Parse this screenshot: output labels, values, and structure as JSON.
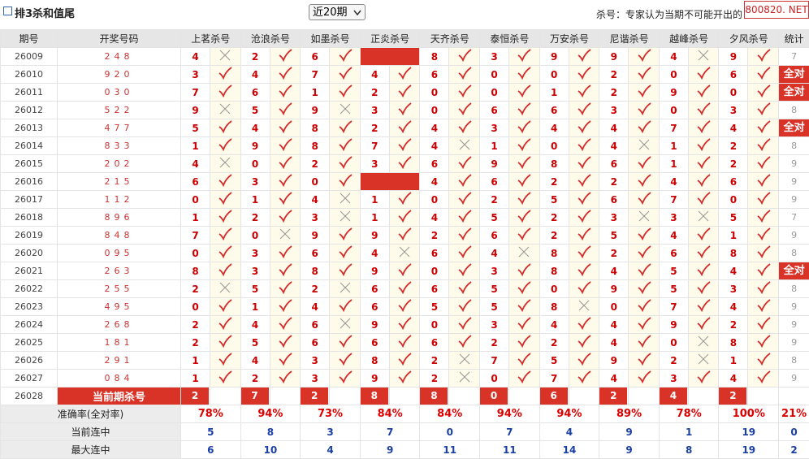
{
  "header": {
    "title": "排3杀和值尾",
    "period_select": "近20期",
    "note": "杀号：专家认为当期不可能开出的",
    "watermark": "800820. NET"
  },
  "table": {
    "columns": [
      "期号",
      "开奖号码",
      "上茗杀号",
      "沧浪杀号",
      "如墨杀号",
      "正炎杀号",
      "天齐杀号",
      "泰恒杀号",
      "万安杀号",
      "尼谐杀号",
      "越峰杀号",
      "夕风杀号",
      "统计"
    ],
    "rows": [
      {
        "issue": "26009",
        "draw": "248",
        "cells": [
          {
            "kill": 4,
            "hit": false
          },
          {
            "kill": 2,
            "hit": true
          },
          {
            "kill": 6,
            "hit": true
          },
          {
            "kill": null,
            "hit": null
          },
          {
            "kill": 8,
            "hit": true
          },
          {
            "kill": 3,
            "hit": true
          },
          {
            "kill": 9,
            "hit": true
          },
          {
            "kill": 9,
            "hit": true
          },
          {
            "kill": 4,
            "hit": false
          },
          {
            "kill": 9,
            "hit": true
          }
        ],
        "stat": 7
      },
      {
        "issue": "26010",
        "draw": "920",
        "cells": [
          {
            "kill": 3,
            "hit": true
          },
          {
            "kill": 4,
            "hit": true
          },
          {
            "kill": 7,
            "hit": true
          },
          {
            "kill": 4,
            "hit": true
          },
          {
            "kill": 6,
            "hit": true
          },
          {
            "kill": 0,
            "hit": true
          },
          {
            "kill": 0,
            "hit": true
          },
          {
            "kill": 2,
            "hit": true
          },
          {
            "kill": 0,
            "hit": true
          },
          {
            "kill": 6,
            "hit": true
          }
        ],
        "stat": "全对"
      },
      {
        "issue": "26011",
        "draw": "030",
        "cells": [
          {
            "kill": 7,
            "hit": true
          },
          {
            "kill": 6,
            "hit": true
          },
          {
            "kill": 1,
            "hit": true
          },
          {
            "kill": 2,
            "hit": true
          },
          {
            "kill": 0,
            "hit": true
          },
          {
            "kill": 0,
            "hit": true
          },
          {
            "kill": 1,
            "hit": true
          },
          {
            "kill": 2,
            "hit": true
          },
          {
            "kill": 9,
            "hit": true
          },
          {
            "kill": 0,
            "hit": true
          }
        ],
        "stat": "全对"
      },
      {
        "issue": "26012",
        "draw": "522",
        "cells": [
          {
            "kill": 9,
            "hit": false
          },
          {
            "kill": 5,
            "hit": true
          },
          {
            "kill": 9,
            "hit": false
          },
          {
            "kill": 3,
            "hit": true
          },
          {
            "kill": 0,
            "hit": true
          },
          {
            "kill": 6,
            "hit": true
          },
          {
            "kill": 6,
            "hit": true
          },
          {
            "kill": 3,
            "hit": true
          },
          {
            "kill": 0,
            "hit": true
          },
          {
            "kill": 3,
            "hit": true
          }
        ],
        "stat": 8
      },
      {
        "issue": "26013",
        "draw": "477",
        "cells": [
          {
            "kill": 5,
            "hit": true
          },
          {
            "kill": 4,
            "hit": true
          },
          {
            "kill": 8,
            "hit": true
          },
          {
            "kill": 2,
            "hit": true
          },
          {
            "kill": 4,
            "hit": true
          },
          {
            "kill": 3,
            "hit": true
          },
          {
            "kill": 4,
            "hit": true
          },
          {
            "kill": 4,
            "hit": true
          },
          {
            "kill": 7,
            "hit": true
          },
          {
            "kill": 4,
            "hit": true
          }
        ],
        "stat": "全对"
      },
      {
        "issue": "26014",
        "draw": "833",
        "cells": [
          {
            "kill": 1,
            "hit": true
          },
          {
            "kill": 9,
            "hit": true
          },
          {
            "kill": 8,
            "hit": true
          },
          {
            "kill": 7,
            "hit": true
          },
          {
            "kill": 4,
            "hit": false
          },
          {
            "kill": 1,
            "hit": true
          },
          {
            "kill": 0,
            "hit": true
          },
          {
            "kill": 4,
            "hit": false
          },
          {
            "kill": 1,
            "hit": true
          },
          {
            "kill": 2,
            "hit": true
          }
        ],
        "stat": 8
      },
      {
        "issue": "26015",
        "draw": "202",
        "cells": [
          {
            "kill": 4,
            "hit": false
          },
          {
            "kill": 0,
            "hit": true
          },
          {
            "kill": 2,
            "hit": true
          },
          {
            "kill": 3,
            "hit": true
          },
          {
            "kill": 6,
            "hit": true
          },
          {
            "kill": 9,
            "hit": true
          },
          {
            "kill": 8,
            "hit": true
          },
          {
            "kill": 6,
            "hit": true
          },
          {
            "kill": 1,
            "hit": true
          },
          {
            "kill": 2,
            "hit": true
          }
        ],
        "stat": 9
      },
      {
        "issue": "26016",
        "draw": "215",
        "cells": [
          {
            "kill": 6,
            "hit": true
          },
          {
            "kill": 3,
            "hit": true
          },
          {
            "kill": 0,
            "hit": true
          },
          {
            "kill": null,
            "hit": null
          },
          {
            "kill": 4,
            "hit": true
          },
          {
            "kill": 6,
            "hit": true
          },
          {
            "kill": 2,
            "hit": true
          },
          {
            "kill": 2,
            "hit": true
          },
          {
            "kill": 4,
            "hit": true
          },
          {
            "kill": 6,
            "hit": true
          }
        ],
        "stat": 9
      },
      {
        "issue": "26017",
        "draw": "112",
        "cells": [
          {
            "kill": 0,
            "hit": true
          },
          {
            "kill": 1,
            "hit": true
          },
          {
            "kill": 4,
            "hit": false
          },
          {
            "kill": 1,
            "hit": true
          },
          {
            "kill": 0,
            "hit": true
          },
          {
            "kill": 2,
            "hit": true
          },
          {
            "kill": 5,
            "hit": true
          },
          {
            "kill": 6,
            "hit": true
          },
          {
            "kill": 7,
            "hit": true
          },
          {
            "kill": 0,
            "hit": true
          }
        ],
        "stat": 9
      },
      {
        "issue": "26018",
        "draw": "896",
        "cells": [
          {
            "kill": 1,
            "hit": true
          },
          {
            "kill": 2,
            "hit": true
          },
          {
            "kill": 3,
            "hit": false
          },
          {
            "kill": 1,
            "hit": true
          },
          {
            "kill": 4,
            "hit": true
          },
          {
            "kill": 5,
            "hit": true
          },
          {
            "kill": 2,
            "hit": true
          },
          {
            "kill": 3,
            "hit": false
          },
          {
            "kill": 3,
            "hit": false
          },
          {
            "kill": 5,
            "hit": true
          }
        ],
        "stat": 7
      },
      {
        "issue": "26019",
        "draw": "848",
        "cells": [
          {
            "kill": 7,
            "hit": true
          },
          {
            "kill": 0,
            "hit": false
          },
          {
            "kill": 9,
            "hit": true
          },
          {
            "kill": 9,
            "hit": true
          },
          {
            "kill": 2,
            "hit": true
          },
          {
            "kill": 6,
            "hit": true
          },
          {
            "kill": 2,
            "hit": true
          },
          {
            "kill": 5,
            "hit": true
          },
          {
            "kill": 4,
            "hit": true
          },
          {
            "kill": 1,
            "hit": true
          }
        ],
        "stat": 9
      },
      {
        "issue": "26020",
        "draw": "095",
        "cells": [
          {
            "kill": 0,
            "hit": true
          },
          {
            "kill": 3,
            "hit": true
          },
          {
            "kill": 6,
            "hit": true
          },
          {
            "kill": 4,
            "hit": false
          },
          {
            "kill": 6,
            "hit": true
          },
          {
            "kill": 4,
            "hit": false
          },
          {
            "kill": 8,
            "hit": true
          },
          {
            "kill": 2,
            "hit": true
          },
          {
            "kill": 6,
            "hit": true
          },
          {
            "kill": 8,
            "hit": true
          }
        ],
        "stat": 8
      },
      {
        "issue": "26021",
        "draw": "263",
        "cells": [
          {
            "kill": 8,
            "hit": true
          },
          {
            "kill": 3,
            "hit": true
          },
          {
            "kill": 8,
            "hit": true
          },
          {
            "kill": 9,
            "hit": true
          },
          {
            "kill": 0,
            "hit": true
          },
          {
            "kill": 3,
            "hit": true
          },
          {
            "kill": 8,
            "hit": true
          },
          {
            "kill": 4,
            "hit": true
          },
          {
            "kill": 5,
            "hit": true
          },
          {
            "kill": 4,
            "hit": true
          }
        ],
        "stat": "全对"
      },
      {
        "issue": "26022",
        "draw": "255",
        "cells": [
          {
            "kill": 2,
            "hit": false
          },
          {
            "kill": 5,
            "hit": true
          },
          {
            "kill": 2,
            "hit": false
          },
          {
            "kill": 6,
            "hit": true
          },
          {
            "kill": 6,
            "hit": true
          },
          {
            "kill": 5,
            "hit": true
          },
          {
            "kill": 0,
            "hit": true
          },
          {
            "kill": 9,
            "hit": true
          },
          {
            "kill": 5,
            "hit": true
          },
          {
            "kill": 3,
            "hit": true
          }
        ],
        "stat": 8
      },
      {
        "issue": "26023",
        "draw": "495",
        "cells": [
          {
            "kill": 0,
            "hit": true
          },
          {
            "kill": 1,
            "hit": true
          },
          {
            "kill": 4,
            "hit": true
          },
          {
            "kill": 6,
            "hit": true
          },
          {
            "kill": 5,
            "hit": true
          },
          {
            "kill": 5,
            "hit": true
          },
          {
            "kill": 8,
            "hit": false
          },
          {
            "kill": 0,
            "hit": true
          },
          {
            "kill": 7,
            "hit": true
          },
          {
            "kill": 4,
            "hit": true
          }
        ],
        "stat": 9
      },
      {
        "issue": "26024",
        "draw": "268",
        "cells": [
          {
            "kill": 2,
            "hit": true
          },
          {
            "kill": 4,
            "hit": true
          },
          {
            "kill": 6,
            "hit": false
          },
          {
            "kill": 9,
            "hit": true
          },
          {
            "kill": 0,
            "hit": true
          },
          {
            "kill": 3,
            "hit": true
          },
          {
            "kill": 4,
            "hit": true
          },
          {
            "kill": 4,
            "hit": true
          },
          {
            "kill": 9,
            "hit": true
          },
          {
            "kill": 2,
            "hit": true
          }
        ],
        "stat": 9
      },
      {
        "issue": "26025",
        "draw": "181",
        "cells": [
          {
            "kill": 2,
            "hit": true
          },
          {
            "kill": 5,
            "hit": true
          },
          {
            "kill": 6,
            "hit": true
          },
          {
            "kill": 6,
            "hit": true
          },
          {
            "kill": 6,
            "hit": true
          },
          {
            "kill": 2,
            "hit": true
          },
          {
            "kill": 2,
            "hit": true
          },
          {
            "kill": 4,
            "hit": true
          },
          {
            "kill": 0,
            "hit": false
          },
          {
            "kill": 8,
            "hit": true
          }
        ],
        "stat": 9
      },
      {
        "issue": "26026",
        "draw": "291",
        "cells": [
          {
            "kill": 1,
            "hit": true
          },
          {
            "kill": 4,
            "hit": true
          },
          {
            "kill": 3,
            "hit": true
          },
          {
            "kill": 8,
            "hit": true
          },
          {
            "kill": 2,
            "hit": false
          },
          {
            "kill": 7,
            "hit": true
          },
          {
            "kill": 5,
            "hit": true
          },
          {
            "kill": 9,
            "hit": true
          },
          {
            "kill": 2,
            "hit": false
          },
          {
            "kill": 1,
            "hit": true
          }
        ],
        "stat": 8
      },
      {
        "issue": "26027",
        "draw": "084",
        "cells": [
          {
            "kill": 1,
            "hit": true
          },
          {
            "kill": 2,
            "hit": true
          },
          {
            "kill": 3,
            "hit": true
          },
          {
            "kill": 9,
            "hit": true
          },
          {
            "kill": 2,
            "hit": false
          },
          {
            "kill": 0,
            "hit": true
          },
          {
            "kill": 7,
            "hit": true
          },
          {
            "kill": 4,
            "hit": true
          },
          {
            "kill": 3,
            "hit": true
          },
          {
            "kill": 4,
            "hit": true
          }
        ],
        "stat": 9
      }
    ],
    "current": {
      "issue": "26028",
      "label": "当前期杀号",
      "kills": [
        2,
        7,
        2,
        8,
        8,
        0,
        6,
        2,
        4,
        2
      ]
    },
    "summary": [
      {
        "label": "准确率(全对率)",
        "values": [
          "78%",
          "94%",
          "73%",
          "84%",
          "84%",
          "94%",
          "94%",
          "89%",
          "78%",
          "100%",
          "21%"
        ]
      },
      {
        "label": "当前连中",
        "values": [
          5,
          8,
          3,
          7,
          0,
          7,
          4,
          9,
          1,
          19,
          0
        ]
      },
      {
        "label": "最大连中",
        "values": [
          6,
          10,
          4,
          9,
          11,
          11,
          14,
          9,
          8,
          19,
          2
        ]
      }
    ]
  }
}
